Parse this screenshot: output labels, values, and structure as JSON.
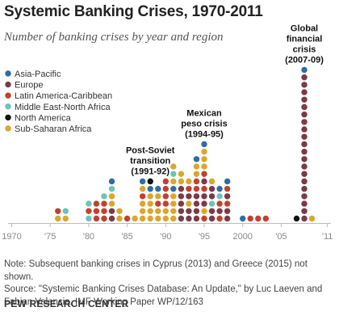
{
  "title": "Systemic Banking Crises, 1970-2011",
  "subtitle": "Number of banking crises by year and region",
  "colors": {
    "Asia-Pacific": "#2e6da4",
    "Europe": "#7a3a47",
    "Latin America-Caribbean": "#c0422e",
    "Middle East-North Africa": "#6cc3b8",
    "North America": "#111111",
    "Sub-Saharan Africa": "#d9a72f",
    "axis": "#bbbbbb"
  },
  "chart_data": {
    "type": "scatter",
    "title": "Systemic Banking Crises, 1970-2011",
    "xlabel": "",
    "ylabel": "Number of banking crises",
    "xlim": [
      1970,
      2011
    ],
    "legend_position": "top-left",
    "legend": [
      "Asia-Pacific",
      "Europe",
      "Latin America-Caribbean",
      "Middle East-North Africa",
      "North America",
      "Sub-Saharan Africa"
    ],
    "x_ticks": [
      "1970",
      "'75",
      "'80",
      "'85",
      "'90",
      "'95",
      "2000",
      "'05",
      "'11"
    ],
    "x_tick_values": [
      1970,
      1975,
      1980,
      1985,
      1990,
      1995,
      2000,
      2005,
      2011
    ],
    "stacks": [
      {
        "year": 1976,
        "regions": [
          "Sub-Saharan Africa",
          "Latin America-Caribbean"
        ]
      },
      {
        "year": 1977,
        "regions": [
          "Sub-Saharan Africa",
          "Middle East-North Africa"
        ]
      },
      {
        "year": 1980,
        "regions": [
          "Middle East-North Africa",
          "Latin America-Caribbean",
          "Middle East-North Africa"
        ]
      },
      {
        "year": 1981,
        "regions": [
          "Latin America-Caribbean",
          "Latin America-Caribbean",
          "Latin America-Caribbean"
        ]
      },
      {
        "year": 1982,
        "regions": [
          "Latin America-Caribbean",
          "Latin America-Caribbean",
          "Latin America-Caribbean",
          "Middle East-North Africa"
        ]
      },
      {
        "year": 1983,
        "regions": [
          "Europe",
          "Europe",
          "Sub-Saharan Africa",
          "Sub-Saharan Africa",
          "Middle East-North Africa",
          "Asia-Pacific"
        ]
      },
      {
        "year": 1984,
        "regions": [
          "Sub-Saharan Africa",
          "Sub-Saharan Africa"
        ]
      },
      {
        "year": 1985,
        "regions": [
          "Latin America-Caribbean"
        ]
      },
      {
        "year": 1986,
        "regions": [
          "Sub-Saharan Africa"
        ]
      },
      {
        "year": 1987,
        "regions": [
          "Sub-Saharan Africa",
          "Sub-Saharan Africa",
          "Sub-Saharan Africa",
          "Latin America-Caribbean",
          "Sub-Saharan Africa",
          "Asia-Pacific"
        ]
      },
      {
        "year": 1988,
        "regions": [
          "Sub-Saharan Africa",
          "Sub-Saharan Africa",
          "Sub-Saharan Africa",
          "Sub-Saharan Africa",
          "Asia-Pacific",
          "North America"
        ]
      },
      {
        "year": 1989,
        "regions": [
          "Sub-Saharan Africa",
          "Sub-Saharan Africa",
          "Latin America-Caribbean",
          "Sub-Saharan Africa",
          "Asia-Pacific"
        ]
      },
      {
        "year": 1990,
        "regions": [
          "Sub-Saharan Africa",
          "Sub-Saharan Africa",
          "Latin America-Caribbean",
          "Latin America-Caribbean",
          "Latin America-Caribbean",
          "Latin America-Caribbean"
        ]
      },
      {
        "year": 1991,
        "regions": [
          "Sub-Saharan Africa",
          "Sub-Saharan Africa",
          "Sub-Saharan Africa",
          "Sub-Saharan Africa",
          "Asia-Pacific",
          "Sub-Saharan Africa",
          "Middle East-North Africa",
          "Sub-Saharan Africa"
        ]
      },
      {
        "year": 1992,
        "regions": [
          "Europe",
          "Europe",
          "Europe",
          "Europe",
          "Europe",
          "Sub-Saharan Africa",
          "Sub-Saharan Africa"
        ]
      },
      {
        "year": 1993,
        "regions": [
          "Europe",
          "Europe",
          "Sub-Saharan Africa",
          "Europe",
          "Latin America-Caribbean",
          "Sub-Saharan Africa"
        ]
      },
      {
        "year": 1994,
        "regions": [
          "Europe",
          "Europe",
          "Europe",
          "Europe",
          "Latin America-Caribbean",
          "Latin America-Caribbean",
          "Sub-Saharan Africa",
          "Sub-Saharan Africa",
          "Asia-Pacific"
        ]
      },
      {
        "year": 1995,
        "regions": [
          "Latin America-Caribbean",
          "Sub-Saharan Africa",
          "Europe",
          "Europe",
          "Latin America-Caribbean",
          "Europe",
          "Latin America-Caribbean",
          "Sub-Saharan Africa",
          "Sub-Saharan Africa",
          "Sub-Saharan Africa",
          "Asia-Pacific"
        ]
      },
      {
        "year": 1996,
        "regions": [
          "Europe",
          "Europe",
          "Middle East-North Africa",
          "Europe",
          "Europe",
          "Sub-Saharan Africa"
        ]
      },
      {
        "year": 1997,
        "regions": [
          "Latin America-Caribbean",
          "Europe",
          "Latin America-Caribbean",
          "Middle East-North Africa",
          "Asia-Pacific"
        ]
      },
      {
        "year": 1998,
        "regions": [
          "Europe",
          "Europe",
          "Latin America-Caribbean",
          "Europe",
          "Latin America-Caribbean",
          "Asia-Pacific"
        ]
      },
      {
        "year": 2000,
        "regions": [
          "Asia-Pacific"
        ]
      },
      {
        "year": 2001,
        "regions": [
          "Latin America-Caribbean"
        ]
      },
      {
        "year": 2002,
        "regions": [
          "Latin America-Caribbean"
        ]
      },
      {
        "year": 2003,
        "regions": [
          "Latin America-Caribbean"
        ]
      },
      {
        "year": 2007,
        "regions": [
          "North America"
        ]
      },
      {
        "year": 2008,
        "regions": [
          "Europe",
          "Europe",
          "Europe",
          "Europe",
          "Europe",
          "Europe",
          "Europe",
          "Europe",
          "Europe",
          "Europe",
          "Europe",
          "Europe",
          "Europe",
          "Europe",
          "Europe",
          "Europe",
          "Europe",
          "Europe",
          "Europe",
          "Europe",
          "Asia-Pacific"
        ]
      },
      {
        "year": 2009,
        "regions": [
          "Sub-Saharan Africa"
        ]
      }
    ],
    "annotations": [
      {
        "year": 1988,
        "lines": [
          "Post-Soviet",
          "transition",
          "(1991-92)"
        ]
      },
      {
        "year": 1995,
        "lines": [
          "Mexican",
          "peso crisis",
          "(1994-95)"
        ]
      },
      {
        "year": 2008,
        "lines": [
          "Global",
          "financial",
          "crisis",
          "(2007-09)"
        ]
      }
    ]
  },
  "note_line1": "Note: Subsequent banking crises in Cyprus (2013) and Greece (2015) not shown.",
  "note_line2": "Source: \"Systemic Banking Crises Database: An Update,\" by Luc Laeven and Fabian Valencia. IMF Working Paper WP/12/163",
  "brand": "PEW RESEARCH CENTER"
}
